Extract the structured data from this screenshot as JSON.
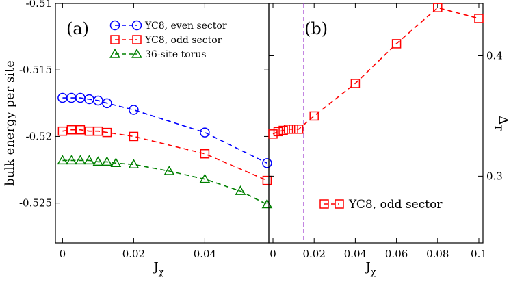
{
  "chart_data": [
    {
      "type": "line",
      "panel_label": "(a)",
      "xlabel": "J",
      "xlabel_sub": "χ",
      "ylabel": "bulk energy per site",
      "xlim": [
        -0.002,
        0.058
      ],
      "ylim": [
        -0.528,
        -0.51
      ],
      "xticks": [
        0,
        0.02,
        0.04
      ],
      "xtick_labels": [
        "0",
        "0.02",
        "0.04"
      ],
      "yticks": [
        -0.525,
        -0.52,
        -0.515,
        -0.51
      ],
      "ytick_labels": [
        "-0.525",
        "-0.52",
        "-0.515",
        "-0.51"
      ],
      "legend_position": "top-right",
      "series": [
        {
          "name": "YC8, even sector",
          "color": "#0000ff",
          "marker": "circle",
          "x": [
            0,
            0.0025,
            0.005,
            0.0075,
            0.01,
            0.0125,
            0.02,
            0.04,
            0.0575
          ],
          "y": [
            -0.5171,
            -0.5171,
            -0.5171,
            -0.5172,
            -0.5173,
            -0.5175,
            -0.518,
            -0.5197,
            -0.522
          ]
        },
        {
          "name": "YC8, odd sector",
          "color": "#ff0000",
          "marker": "square",
          "x": [
            0,
            0.0025,
            0.005,
            0.0075,
            0.01,
            0.0125,
            0.02,
            0.04,
            0.0575
          ],
          "y": [
            -0.5196,
            -0.5195,
            -0.5195,
            -0.5196,
            -0.5196,
            -0.5197,
            -0.52,
            -0.5213,
            -0.5233
          ]
        },
        {
          "name": "36-site torus",
          "color": "#008000",
          "marker": "triangle",
          "x": [
            0,
            0.0025,
            0.005,
            0.0075,
            0.01,
            0.0125,
            0.015,
            0.02,
            0.03,
            0.04,
            0.05,
            0.0575
          ],
          "y": [
            -0.5218,
            -0.5218,
            -0.5218,
            -0.5218,
            -0.5219,
            -0.5219,
            -0.522,
            -0.5221,
            -0.5226,
            -0.5232,
            -0.5241,
            -0.5251
          ]
        }
      ]
    },
    {
      "type": "line",
      "panel_label": "(b)",
      "xlabel": "J",
      "xlabel_sub": "χ",
      "ylabel": "Δ",
      "ylabel_sub": "T",
      "xlim": [
        -0.002,
        0.102
      ],
      "ylim": [
        0.2445,
        0.4435
      ],
      "xticks": [
        0,
        0.02,
        0.04,
        0.06,
        0.08,
        0.1
      ],
      "xtick_labels": [
        "0",
        "0.02",
        "0.04",
        "0.06",
        "0.08",
        "0.1"
      ],
      "yticks": [
        0.3,
        0.4
      ],
      "ytick_labels": [
        "0.3",
        "0.4"
      ],
      "vline_x": 0.015,
      "vline_color": "#9932cc",
      "legend_position": "bottom-right",
      "series": [
        {
          "name": "YC8, odd sector",
          "color": "#ff0000",
          "marker": "square",
          "x": [
            0,
            0.0025,
            0.005,
            0.0075,
            0.01,
            0.0125,
            0.02,
            0.04,
            0.06,
            0.08,
            0.1
          ],
          "y": [
            0.335,
            0.337,
            0.338,
            0.339,
            0.339,
            0.339,
            0.35,
            0.377,
            0.41,
            0.44,
            0.431
          ]
        }
      ]
    }
  ]
}
